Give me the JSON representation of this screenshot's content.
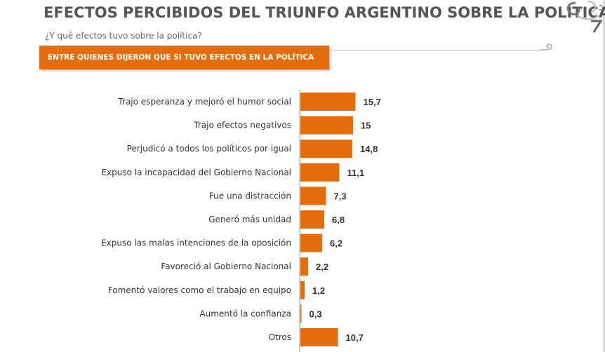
{
  "page": {
    "title": "EFECTOS PERCIBIDOS DEL TRIUNFO ARGENTINO SOBRE LA POLÍTICA",
    "subtitle": "¿Y qué efectos tuvo sobre la política?",
    "banner": "ENTRE QUIENES DIJERON QUE SI TUVO EFECTOS EN LA POLÍTICA",
    "logo_icon": "spiral-logo-icon"
  },
  "colors": {
    "bar": "#e46c0a",
    "axis": "#999999",
    "text": "#333333"
  },
  "chart_data": {
    "type": "bar",
    "orientation": "horizontal",
    "title": "EFECTOS PERCIBIDOS DEL TRIUNFO ARGENTINO SOBRE LA POLÍTICA",
    "xlabel": "",
    "ylabel": "",
    "xlim": [
      0,
      16
    ],
    "grid": false,
    "categories": [
      "Trajo esperanza y mejoró el humor social",
      "Trajo efectos negativos",
      "Perjudicó a todos los políticos por igual",
      "Expuso la incapacidad del Gobierno Nacional",
      "Fue una distracción",
      "Generó más unidad",
      "Expuso las malas intenciones de la oposición",
      "Favoreció al Gobierno Nacional",
      "Fomentó valores como el trabajo en equipo",
      "Aumentó la confianza",
      "Otros"
    ],
    "values": [
      15.7,
      15,
      14.8,
      11.1,
      7.3,
      6.8,
      6.2,
      2.2,
      1.2,
      0.3,
      10.7
    ],
    "value_labels": [
      "15,7",
      "15",
      "14,8",
      "11,1",
      "7,3",
      "6,8",
      "6,2",
      "2,2",
      "1,2",
      "0,3",
      "10,7"
    ]
  }
}
